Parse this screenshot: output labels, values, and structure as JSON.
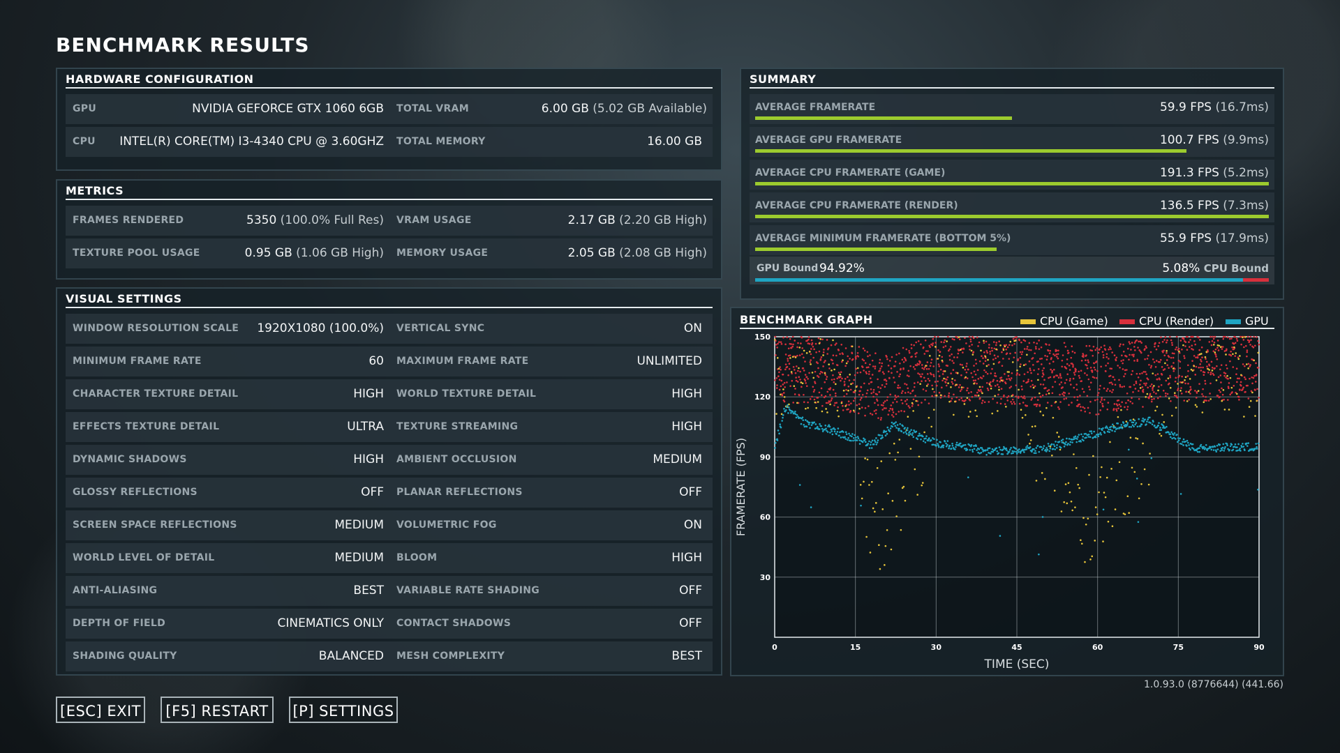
{
  "title": "BENCHMARK RESULTS",
  "hardware": {
    "header": "HARDWARE CONFIGURATION",
    "rows": [
      {
        "l1": "GPU",
        "v1": "NVIDIA GEFORCE GTX 1060 6GB",
        "l2": "TOTAL VRAM",
        "v2": "6.00 GB",
        "v2b": "(5.02 GB Available)"
      },
      {
        "l1": "CPU",
        "v1": "INTEL(R) CORE(TM) I3-4340 CPU @ 3.60GHZ",
        "l2": "TOTAL MEMORY",
        "v2": "16.00 GB",
        "v2b": ""
      }
    ]
  },
  "metrics": {
    "header": "METRICS",
    "rows": [
      {
        "l1": "FRAMES RENDERED",
        "v1": "5350",
        "v1b": "(100.0% Full Res)",
        "l2": "VRAM USAGE",
        "v2": "2.17 GB",
        "v2b": "(2.20 GB High)"
      },
      {
        "l1": "TEXTURE POOL USAGE",
        "v1": "0.95 GB",
        "v1b": "(1.06 GB High)",
        "l2": "MEMORY USAGE",
        "v2": "2.05 GB",
        "v2b": "(2.08 GB High)"
      }
    ]
  },
  "visual": {
    "header": "VISUAL SETTINGS",
    "rows": [
      {
        "l1": "WINDOW RESOLUTION SCALE",
        "v1": "1920X1080 (100.0%)",
        "l2": "VERTICAL SYNC",
        "v2": "ON"
      },
      {
        "l1": "MINIMUM FRAME RATE",
        "v1": "60",
        "l2": "MAXIMUM FRAME RATE",
        "v2": "UNLIMITED"
      },
      {
        "l1": "CHARACTER TEXTURE DETAIL",
        "v1": "HIGH",
        "l2": "WORLD TEXTURE DETAIL",
        "v2": "HIGH"
      },
      {
        "l1": "EFFECTS TEXTURE DETAIL",
        "v1": "ULTRA",
        "l2": "TEXTURE STREAMING",
        "v2": "HIGH"
      },
      {
        "l1": "DYNAMIC SHADOWS",
        "v1": "HIGH",
        "l2": "AMBIENT OCCLUSION",
        "v2": "MEDIUM"
      },
      {
        "l1": "GLOSSY REFLECTIONS",
        "v1": "OFF",
        "l2": "PLANAR REFLECTIONS",
        "v2": "OFF"
      },
      {
        "l1": "SCREEN SPACE REFLECTIONS",
        "v1": "MEDIUM",
        "l2": "VOLUMETRIC FOG",
        "v2": "ON"
      },
      {
        "l1": "WORLD LEVEL OF DETAIL",
        "v1": "MEDIUM",
        "l2": "BLOOM",
        "v2": "HIGH"
      },
      {
        "l1": "ANTI-ALIASING",
        "v1": "BEST",
        "l2": "VARIABLE RATE SHADING",
        "v2": "OFF"
      },
      {
        "l1": "DEPTH OF FIELD",
        "v1": "CINEMATICS ONLY",
        "l2": "CONTACT SHADOWS",
        "v2": "OFF"
      },
      {
        "l1": "SHADING QUALITY",
        "v1": "BALANCED",
        "l2": "MESH COMPLEXITY",
        "v2": "BEST"
      }
    ]
  },
  "summary": {
    "header": "SUMMARY",
    "rows": [
      {
        "label": "AVERAGE FRAMERATE",
        "fps": "59.9 FPS",
        "ms": "(16.7ms)",
        "bar": 0.5
      },
      {
        "label": "AVERAGE GPU FRAMERATE",
        "fps": "100.7 FPS",
        "ms": "(9.9ms)",
        "bar": 0.84
      },
      {
        "label": "AVERAGE CPU FRAMERATE (GAME)",
        "fps": "191.3 FPS",
        "ms": "(5.2ms)",
        "bar": 1.0
      },
      {
        "label": "AVERAGE CPU FRAMERATE (RENDER)",
        "fps": "136.5 FPS",
        "ms": "(7.3ms)",
        "bar": 1.0
      },
      {
        "label": "AVERAGE MINIMUM FRAMERATE (BOTTOM 5%)",
        "fps": "55.9 FPS",
        "ms": "(17.9ms)",
        "bar": 0.47
      }
    ],
    "bound": {
      "gpu_label": "GPU Bound",
      "gpu_value": "94.92%",
      "cpu_value": "5.08%",
      "cpu_label": "CPU Bound",
      "gpu_fraction": 0.9492
    }
  },
  "graph": {
    "header": "BENCHMARK GRAPH",
    "legend": [
      {
        "name": "CPU (Game)",
        "color": "#e7c53a"
      },
      {
        "name": "CPU (Render)",
        "color": "#d8303c"
      },
      {
        "name": "GPU",
        "color": "#1fa5c3"
      }
    ]
  },
  "chart_data": {
    "type": "scatter",
    "title": "BENCHMARK GRAPH",
    "xlabel": "TIME (SEC)",
    "ylabel": "FRAMERATE (FPS)",
    "xlim": [
      0,
      90
    ],
    "ylim": [
      0,
      150
    ],
    "xticks": [
      0,
      15,
      30,
      45,
      60,
      75,
      90
    ],
    "yticks": [
      30,
      60,
      90,
      120,
      150
    ],
    "grid": true,
    "series": [
      {
        "name": "CPU (Game)",
        "color": "#e7c53a",
        "trend_x": [
          0,
          15,
          18,
          30,
          45,
          58,
          75,
          90
        ],
        "trend_y": [
          150,
          150,
          80,
          150,
          150,
          95,
          150,
          150
        ]
      },
      {
        "name": "CPU (Render)",
        "color": "#d8303c",
        "trend_x": [
          0,
          10,
          20,
          30,
          45,
          60,
          75,
          90
        ],
        "trend_y": [
          135,
          132,
          125,
          135,
          133,
          128,
          135,
          135
        ]
      },
      {
        "name": "GPU",
        "color": "#1fa5c3",
        "trend_x": [
          0,
          2,
          6,
          10,
          14,
          18,
          22,
          30,
          40,
          50,
          55,
          60,
          65,
          70,
          78,
          85,
          90
        ],
        "trend_y": [
          95,
          115,
          106,
          104,
          100,
          96,
          106,
          97,
          93,
          94,
          98,
          102,
          106,
          108,
          94,
          95,
          95
        ]
      }
    ]
  },
  "buttons": {
    "exit": "[ESC] EXIT",
    "restart": "[F5] RESTART",
    "settings": "[P] SETTINGS"
  },
  "version": "1.0.93.0 (8776644) (441.66)"
}
